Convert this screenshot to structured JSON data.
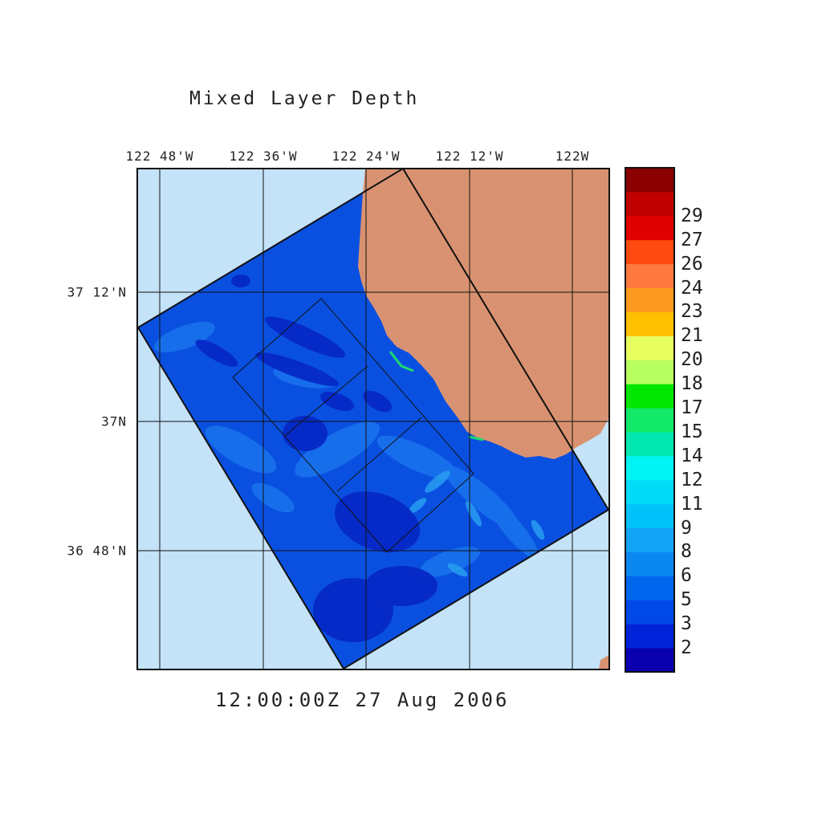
{
  "title": "Mixed Layer Depth",
  "timestamp": "12:00:00Z  27 Aug 2006",
  "lon_labels": [
    "122 48'W",
    "122 36'W",
    "122 24'W",
    "122 12'W",
    "122W"
  ],
  "lat_labels": [
    "37 12'N",
    "37N",
    "36 48'N"
  ],
  "colorbar": {
    "labels": [
      "2",
      "3",
      "5",
      "6",
      "8",
      "9",
      "11",
      "12",
      "14",
      "15",
      "17",
      "18",
      "20",
      "21",
      "23",
      "24",
      "26",
      "27",
      "29"
    ],
    "colors": [
      "#0a00b0",
      "#0022d8",
      "#0048e8",
      "#0066ee",
      "#0a88f0",
      "#12a4f6",
      "#00c2fa",
      "#00dcf8",
      "#00f4f4",
      "#00e8b0",
      "#14ea6a",
      "#00e600",
      "#b8ff60",
      "#e8ff60",
      "#ffc000",
      "#ff9a20",
      "#ff7a40",
      "#ff4a10",
      "#e00000",
      "#c00000",
      "#8a0000"
    ]
  },
  "legend_colors": {
    "ocean_background": "#c4e2f8",
    "land": "#d99271",
    "domain_fill": "#0a50e0"
  }
}
